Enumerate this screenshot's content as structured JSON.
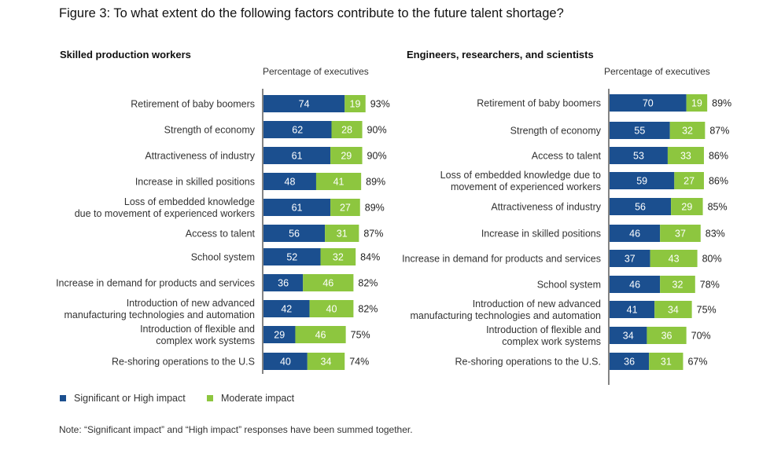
{
  "figure_title": "Figure 3: To what extent do the following factors contribute to the future talent shortage?",
  "colors": {
    "significant": "#1b4f8f",
    "moderate": "#8dc63f",
    "axis": "#333333"
  },
  "chart_data": [
    {
      "type": "bar",
      "stacked": true,
      "orientation": "horizontal",
      "title": "Skilled production workers",
      "xlabel": "Percentage of executives",
      "categories": [
        [
          "Retirement of baby boomers"
        ],
        [
          "Strength of economy"
        ],
        [
          "Attractiveness of industry"
        ],
        [
          "Increase in skilled positions"
        ],
        [
          "Loss of embedded knowledge",
          "due to movement of experienced workers"
        ],
        [
          "Access to talent"
        ],
        [
          "School system"
        ],
        [
          "Increase in demand for products and services"
        ],
        [
          "Introduction of new advanced",
          "manufacturing technologies and automation"
        ],
        [
          "Introduction of flexible and",
          "complex work systems"
        ],
        [
          "Re-shoring operations to the U.S"
        ]
      ],
      "series": [
        {
          "name": "Significant or High impact",
          "values": [
            74,
            62,
            61,
            48,
            61,
            56,
            52,
            36,
            42,
            29,
            40
          ]
        },
        {
          "name": "Moderate impact",
          "values": [
            19,
            28,
            29,
            41,
            27,
            31,
            32,
            46,
            40,
            46,
            34
          ]
        }
      ],
      "totals": [
        "93%",
        "90%",
        "90%",
        "89%",
        "89%",
        "87%",
        "84%",
        "82%",
        "82%",
        "75%",
        "74%"
      ]
    },
    {
      "type": "bar",
      "stacked": true,
      "orientation": "horizontal",
      "title": "Engineers, researchers, and scientists",
      "xlabel": "Percentage of executives",
      "categories": [
        [
          "Retirement of baby boomers"
        ],
        [
          "Strength of economy"
        ],
        [
          "Access to talent"
        ],
        [
          "Loss of embedded knowledge due to",
          "movement of experienced workers"
        ],
        [
          "Attractiveness of industry"
        ],
        [
          "Increase in skilled positions"
        ],
        [
          "Increase in demand for products and services"
        ],
        [
          "School system"
        ],
        [
          "Introduction of new advanced",
          "manufacturing technologies and automation"
        ],
        [
          "Introduction of flexible and",
          "complex work systems"
        ],
        [
          "Re-shoring operations to the U.S."
        ]
      ],
      "series": [
        {
          "name": "Significant or High impact",
          "values": [
            70,
            55,
            53,
            59,
            56,
            46,
            37,
            46,
            41,
            34,
            36
          ]
        },
        {
          "name": "Moderate impact",
          "values": [
            19,
            32,
            33,
            27,
            29,
            37,
            43,
            32,
            34,
            36,
            31
          ]
        }
      ],
      "totals": [
        "89%",
        "87%",
        "86%",
        "86%",
        "85%",
        "83%",
        "80%",
        "78%",
        "75%",
        "70%",
        "67%"
      ]
    }
  ],
  "legend": {
    "significant": "Significant or High impact",
    "moderate": "Moderate impact"
  },
  "note": "Note: “Significant impact”  and “High impact” responses have been summed together."
}
